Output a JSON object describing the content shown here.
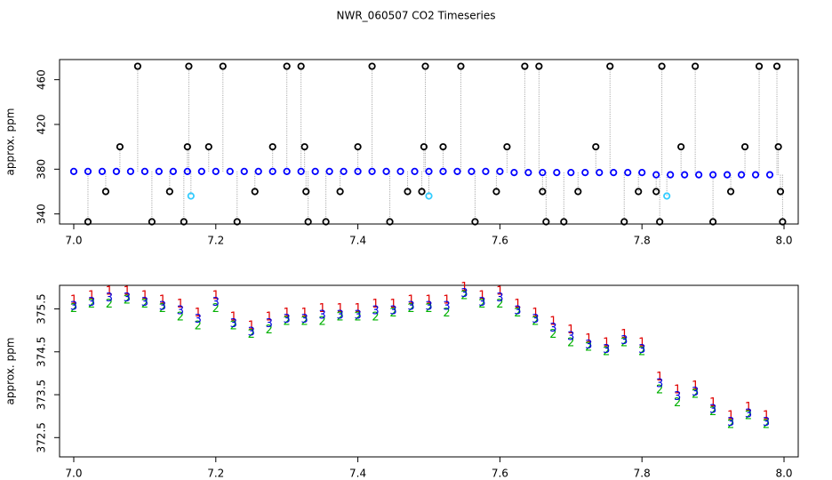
{
  "chart_data": [
    {
      "type": "scatter",
      "title": "NWR_060507  CO2 Timeseries",
      "ylabel": "approx. ppm",
      "xlim": [
        6.98,
        8.02
      ],
      "xticks": [
        {
          "value": 7.0,
          "label": "7.0"
        },
        7.2,
        7.4,
        7.6,
        7.8,
        {
          "value": 8.0,
          "label": "8.0"
        }
      ],
      "ylim": [
        331,
        478
      ],
      "yticks": [
        340,
        380,
        420,
        460
      ],
      "connect": true,
      "series": [
        {
          "color": "#0000ff",
          "x": [
            7.0,
            7.02,
            7.04,
            7.06,
            7.08,
            7.1,
            7.12,
            7.14,
            7.16,
            7.18,
            7.2,
            7.22,
            7.24,
            7.26,
            7.28,
            7.3,
            7.32,
            7.34,
            7.36,
            7.38,
            7.4,
            7.42,
            7.44,
            7.46,
            7.48,
            7.5,
            7.52,
            7.54,
            7.56,
            7.58,
            7.6,
            7.62,
            7.64,
            7.66,
            7.68,
            7.7,
            7.72,
            7.74,
            7.76,
            7.78,
            7.8,
            7.82,
            7.84,
            7.86,
            7.88,
            7.9,
            7.92,
            7.94,
            7.96,
            7.98
          ],
          "values": [
            378,
            378,
            378,
            378,
            378,
            378,
            378,
            378,
            378,
            378,
            378,
            378,
            378,
            378,
            378,
            378,
            378,
            378,
            378,
            378,
            378,
            378,
            378,
            378,
            378,
            378,
            378,
            378,
            378,
            378,
            378,
            377,
            377,
            377,
            377,
            377,
            377,
            377,
            377,
            377,
            377,
            375,
            375,
            375,
            375,
            375,
            375,
            375,
            375,
            375
          ]
        },
        {
          "color": "#000000",
          "x": [
            7.02,
            7.045,
            7.065,
            7.09,
            7.11,
            7.135,
            7.155,
            7.16,
            7.162,
            7.19,
            7.21,
            7.23,
            7.255,
            7.28,
            7.3,
            7.32,
            7.325,
            7.327,
            7.33,
            7.355,
            7.375,
            7.4,
            7.42,
            7.445,
            7.47,
            7.49,
            7.493,
            7.495,
            7.52,
            7.545,
            7.565,
            7.595,
            7.61,
            7.635,
            7.655,
            7.66,
            7.665,
            7.69,
            7.71,
            7.735,
            7.755,
            7.775,
            7.795,
            7.82,
            7.825,
            7.828,
            7.855,
            7.875,
            7.9,
            7.925,
            7.945,
            7.965,
            7.99,
            7.992,
            7.995,
            7.998
          ],
          "values": [
            333,
            360,
            400,
            472,
            333,
            360,
            333,
            400,
            472,
            400,
            472,
            333,
            360,
            400,
            472,
            472,
            400,
            360,
            333,
            333,
            360,
            400,
            472,
            333,
            360,
            360,
            400,
            472,
            400,
            472,
            333,
            360,
            400,
            472,
            472,
            360,
            333,
            333,
            360,
            400,
            472,
            333,
            360,
            360,
            333,
            472,
            400,
            472,
            333,
            360,
            400,
            472,
            472,
            400,
            360,
            333
          ]
        },
        {
          "color": "#33ccff",
          "x": [
            7.165,
            7.5,
            7.835
          ],
          "values": [
            356,
            356,
            356
          ]
        }
      ]
    },
    {
      "type": "scatter",
      "ylabel": "approx. ppm",
      "xlim": [
        6.98,
        8.02
      ],
      "xticks": [
        {
          "value": 7.0,
          "label": "7.0"
        },
        7.2,
        7.4,
        7.6,
        7.8,
        {
          "value": 8.0,
          "label": "8.0"
        }
      ],
      "ylim": [
        372.05,
        376.05
      ],
      "yticks": [
        372.5,
        373.5,
        374.5,
        375.5
      ],
      "x": [
        7.0,
        7.025,
        7.05,
        7.075,
        7.1,
        7.125,
        7.15,
        7.175,
        7.2,
        7.225,
        7.25,
        7.275,
        7.3,
        7.325,
        7.35,
        7.375,
        7.4,
        7.425,
        7.45,
        7.475,
        7.5,
        7.525,
        7.55,
        7.575,
        7.6,
        7.625,
        7.65,
        7.675,
        7.7,
        7.725,
        7.75,
        7.775,
        7.8,
        7.825,
        7.85,
        7.875,
        7.9,
        7.925,
        7.95,
        7.975
      ],
      "series": [
        {
          "marker": "1",
          "color": "#e00000",
          "values": [
            375.7,
            375.8,
            375.9,
            375.9,
            375.8,
            375.7,
            375.6,
            375.4,
            375.8,
            375.3,
            375.1,
            375.3,
            375.4,
            375.4,
            375.5,
            375.5,
            375.5,
            375.6,
            375.6,
            375.7,
            375.7,
            375.7,
            376.0,
            375.8,
            375.9,
            375.6,
            375.4,
            375.2,
            375.0,
            374.8,
            374.7,
            374.9,
            374.7,
            373.9,
            373.6,
            373.7,
            373.3,
            373.0,
            373.2,
            373.0
          ]
        },
        {
          "marker": "2",
          "color": "#00b000",
          "values": [
            375.5,
            375.6,
            375.6,
            375.7,
            375.6,
            375.5,
            375.3,
            375.1,
            375.5,
            375.1,
            374.9,
            375.0,
            375.2,
            375.2,
            375.2,
            375.3,
            375.3,
            375.3,
            375.4,
            375.5,
            375.5,
            375.4,
            375.8,
            375.6,
            375.6,
            375.4,
            375.2,
            374.9,
            374.7,
            374.6,
            374.5,
            374.7,
            374.5,
            373.6,
            373.3,
            373.5,
            373.1,
            372.8,
            373.0,
            372.8
          ]
        },
        {
          "marker": "3",
          "color": "#0000e0",
          "values": [
            375.55,
            375.65,
            375.75,
            375.75,
            375.65,
            375.55,
            375.45,
            375.25,
            375.65,
            375.15,
            374.95,
            375.15,
            375.25,
            375.25,
            375.35,
            375.35,
            375.35,
            375.45,
            375.45,
            375.55,
            375.55,
            375.55,
            375.85,
            375.65,
            375.75,
            375.45,
            375.25,
            375.05,
            374.85,
            374.65,
            374.55,
            374.75,
            374.55,
            373.75,
            373.45,
            373.55,
            373.15,
            372.85,
            373.05,
            372.85
          ]
        }
      ]
    }
  ]
}
